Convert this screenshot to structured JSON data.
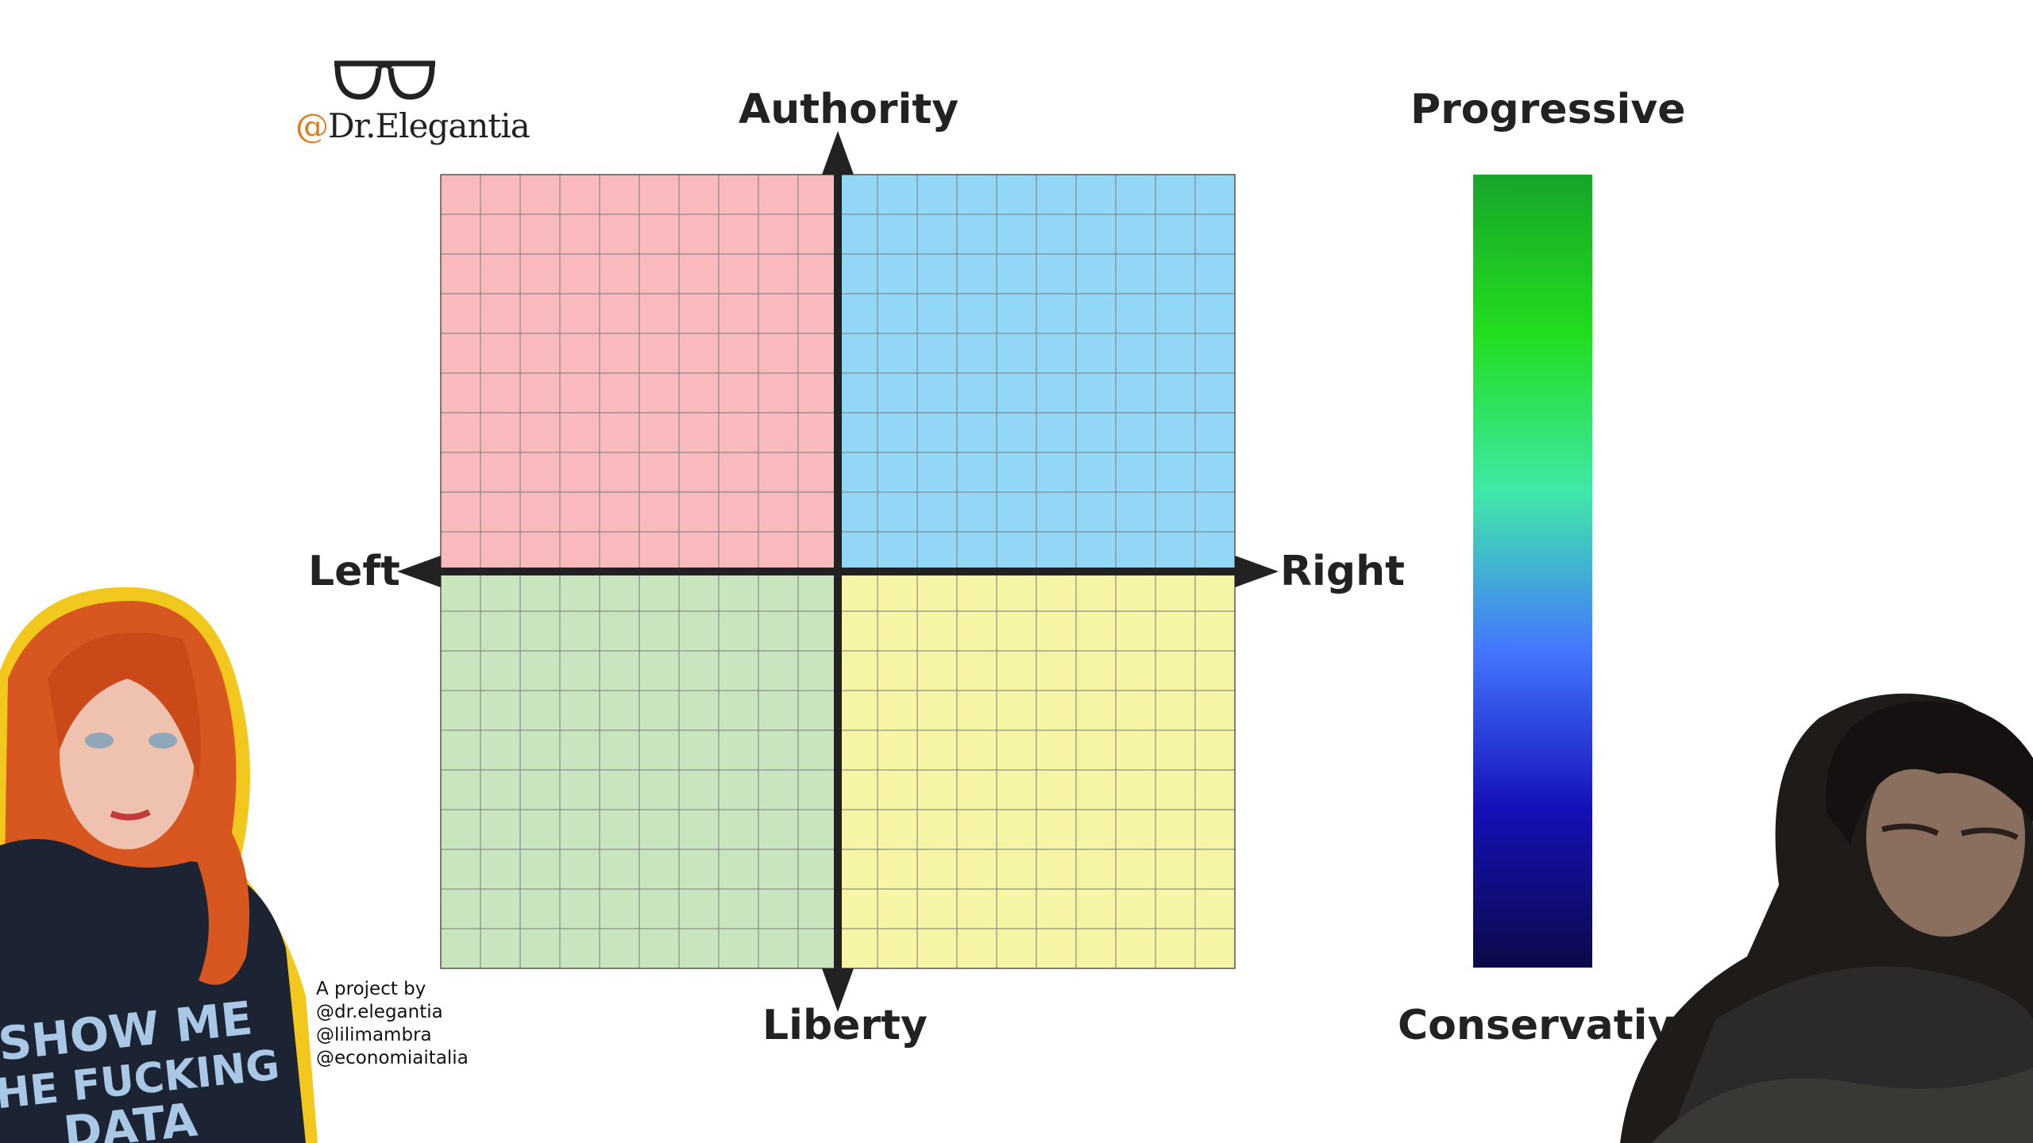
{
  "logo": {
    "at_symbol": "@",
    "name": "Dr.Elegantia",
    "icon": "glasses-icon"
  },
  "axes": {
    "top": "Authority",
    "bottom": "Liberty",
    "left": "Left",
    "right": "Right"
  },
  "scale": {
    "top": "Progressive",
    "bottom": "Conservative",
    "gradient": [
      "#18a52a",
      "#22dd1e",
      "#3fe8a8",
      "#4477ff",
      "#1410b8",
      "#0c0a48"
    ]
  },
  "quadrant_colors": {
    "authoritarian_left": "#f8babd",
    "authoritarian_right": "#92d7f5",
    "libertarian_left": "#c9e5c0",
    "libertarian_right": "#f5f5a5"
  },
  "credits": {
    "line1": "A project by",
    "line2": "@dr.elegantia",
    "line3": "@lilimambra",
    "line4": "@economiaitalia"
  },
  "shirt_text": {
    "line1": "SHOW ME",
    "line2": "HE FUCKING",
    "line3": "DATA"
  }
}
